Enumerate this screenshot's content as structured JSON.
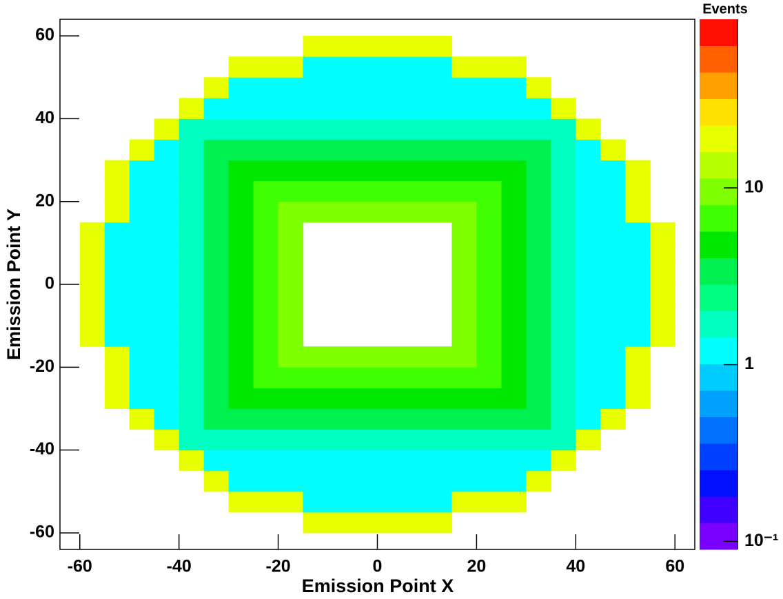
{
  "chart_data": {
    "type": "heatmap",
    "xlabel": "Emission Point X",
    "ylabel": "Emission Point Y",
    "colorbar_title": "Events",
    "xlim": [
      -64,
      64
    ],
    "ylim": [
      -64,
      64
    ],
    "xticks": [
      -60,
      -40,
      -20,
      0,
      20,
      40,
      60
    ],
    "yticks": [
      -60,
      -40,
      -20,
      0,
      20,
      40,
      60
    ],
    "zscale": "log",
    "zlim": [
      0.09,
      90
    ],
    "zticks": [
      {
        "value": 0.1,
        "label": "10⁻¹"
      },
      1,
      10
    ],
    "colormap": [
      "#7a00ff",
      "#4000ff",
      "#0010ff",
      "#0040ff",
      "#0070ff",
      "#00a0ff",
      "#00ccff",
      "#00ffff",
      "#00ffc0",
      "#00ff80",
      "#00f050",
      "#00e800",
      "#40ff00",
      "#80ff00",
      "#b8ff00",
      "#e8ff00",
      "#ffe000",
      "#ffa000",
      "#ff6000",
      "#ff1000"
    ],
    "xbins": [
      -60,
      -55,
      -50,
      -45,
      -40,
      -35,
      -30,
      -25,
      -20,
      -15,
      -10,
      -5,
      0,
      5,
      10,
      15,
      20,
      25,
      30,
      35,
      40,
      45,
      50,
      55,
      60
    ],
    "ybins": [
      -60,
      -55,
      -50,
      -45,
      -40,
      -35,
      -30,
      -25,
      -20,
      -15,
      -10,
      -5,
      0,
      5,
      10,
      15,
      20,
      25,
      30,
      35,
      40,
      45,
      50,
      55,
      60
    ],
    "z": [
      [
        null,
        null,
        null,
        null,
        null,
        null,
        null,
        null,
        null,
        20,
        20,
        20,
        20,
        20,
        20,
        null,
        null,
        null,
        null,
        null,
        null,
        null,
        null,
        null
      ],
      [
        null,
        null,
        null,
        null,
        null,
        null,
        20,
        20,
        20,
        1.2,
        1.2,
        1.2,
        1.2,
        1.2,
        1.2,
        20,
        20,
        20,
        null,
        null,
        null,
        null,
        null,
        null
      ],
      [
        null,
        null,
        null,
        null,
        null,
        20,
        1.2,
        1.2,
        1.2,
        1.2,
        1.2,
        1.2,
        1.2,
        1.2,
        1.2,
        1.2,
        1.2,
        1.2,
        20,
        null,
        null,
        null,
        null,
        null
      ],
      [
        null,
        null,
        null,
        null,
        20,
        1.2,
        1.2,
        1.2,
        1.2,
        1.2,
        1.2,
        1.2,
        1.2,
        1.2,
        1.2,
        1.2,
        1.2,
        1.2,
        1.2,
        20,
        null,
        null,
        null,
        null
      ],
      [
        null,
        null,
        null,
        20,
        2,
        2,
        2,
        2,
        2,
        2,
        2,
        2,
        2,
        2,
        2,
        2,
        2,
        2,
        2,
        2,
        20,
        null,
        null,
        null
      ],
      [
        null,
        null,
        20,
        1.2,
        2,
        3,
        3,
        3,
        3,
        3,
        3,
        3,
        3,
        3,
        3,
        3,
        3,
        3,
        3,
        2,
        1.2,
        20,
        null,
        null
      ],
      [
        null,
        20,
        1.2,
        1.2,
        2,
        3,
        5,
        5,
        5,
        5,
        5,
        5,
        5,
        5,
        5,
        5,
        5,
        5,
        3,
        2,
        1.2,
        1.2,
        20,
        null
      ],
      [
        null,
        20,
        1.2,
        1.2,
        2,
        3,
        5,
        8,
        8,
        8,
        8,
        8,
        8,
        8,
        8,
        8,
        8,
        5,
        3,
        2,
        1.2,
        1.2,
        20,
        null
      ],
      [
        null,
        20,
        1.2,
        1.2,
        2,
        3,
        5,
        8,
        9,
        9,
        9,
        9,
        9,
        9,
        9,
        9,
        8,
        5,
        3,
        2,
        1.2,
        1.2,
        20,
        null
      ],
      [
        20,
        1.2,
        1.2,
        1.2,
        2,
        3,
        5,
        8,
        9,
        null,
        null,
        null,
        null,
        null,
        null,
        9,
        8,
        5,
        3,
        2,
        1.2,
        1.2,
        1.2,
        20
      ],
      [
        20,
        1.2,
        1.2,
        1.2,
        2,
        3,
        5,
        8,
        9,
        null,
        null,
        null,
        null,
        null,
        null,
        9,
        8,
        5,
        3,
        2,
        1.2,
        1.2,
        1.2,
        20
      ],
      [
        20,
        1.2,
        1.2,
        1.2,
        2,
        3,
        5,
        8,
        9,
        null,
        null,
        null,
        null,
        null,
        null,
        9,
        8,
        5,
        3,
        2,
        1.2,
        1.2,
        1.2,
        20
      ],
      [
        20,
        1.2,
        1.2,
        1.2,
        2,
        3,
        5,
        8,
        9,
        null,
        null,
        null,
        null,
        null,
        null,
        9,
        8,
        5,
        3,
        2,
        1.2,
        1.2,
        1.2,
        20
      ],
      [
        20,
        1.2,
        1.2,
        1.2,
        2,
        3,
        5,
        8,
        9,
        null,
        null,
        null,
        null,
        null,
        null,
        9,
        8,
        5,
        3,
        2,
        1.2,
        1.2,
        1.2,
        20
      ],
      [
        20,
        1.2,
        1.2,
        1.2,
        2,
        3,
        5,
        8,
        9,
        null,
        null,
        null,
        null,
        null,
        null,
        9,
        8,
        5,
        3,
        2,
        1.2,
        1.2,
        1.2,
        20
      ],
      [
        null,
        20,
        1.2,
        1.2,
        2,
        3,
        5,
        8,
        9,
        9,
        9,
        9,
        9,
        9,
        9,
        9,
        8,
        5,
        3,
        2,
        1.2,
        1.2,
        20,
        null
      ],
      [
        null,
        20,
        1.2,
        1.2,
        2,
        3,
        5,
        8,
        8,
        8,
        8,
        8,
        8,
        8,
        8,
        8,
        8,
        5,
        3,
        2,
        1.2,
        1.2,
        20,
        null
      ],
      [
        null,
        20,
        1.2,
        1.2,
        2,
        3,
        5,
        5,
        5,
        5,
        5,
        5,
        5,
        5,
        5,
        5,
        5,
        5,
        3,
        2,
        1.2,
        1.2,
        20,
        null
      ],
      [
        null,
        null,
        20,
        1.2,
        2,
        3,
        3,
        3,
        3,
        3,
        3,
        3,
        3,
        3,
        3,
        3,
        3,
        3,
        3,
        2,
        1.2,
        20,
        null,
        null
      ],
      [
        null,
        null,
        null,
        20,
        2,
        2,
        2,
        2,
        2,
        2,
        2,
        2,
        2,
        2,
        2,
        2,
        2,
        2,
        2,
        2,
        20,
        null,
        null,
        null
      ],
      [
        null,
        null,
        null,
        null,
        20,
        1.2,
        1.2,
        1.2,
        1.2,
        1.2,
        1.2,
        1.2,
        1.2,
        1.2,
        1.2,
        1.2,
        1.2,
        1.2,
        1.2,
        20,
        null,
        null,
        null,
        null
      ],
      [
        null,
        null,
        null,
        null,
        null,
        20,
        1.2,
        1.2,
        1.2,
        1.2,
        1.2,
        1.2,
        1.2,
        1.2,
        1.2,
        1.2,
        1.2,
        1.2,
        20,
        null,
        null,
        null,
        null,
        null
      ],
      [
        null,
        null,
        null,
        null,
        null,
        null,
        20,
        20,
        20,
        1.2,
        1.2,
        1.2,
        1.2,
        1.2,
        1.2,
        20,
        20,
        20,
        null,
        null,
        null,
        null,
        null,
        null
      ],
      [
        null,
        null,
        null,
        null,
        null,
        null,
        null,
        null,
        null,
        20,
        20,
        20,
        20,
        20,
        20,
        null,
        null,
        null,
        null,
        null,
        null,
        null,
        null,
        null
      ]
    ]
  }
}
